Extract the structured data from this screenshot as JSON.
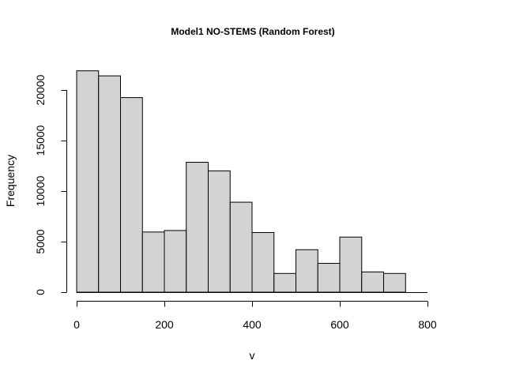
{
  "chart_data": {
    "type": "bar",
    "title": "Model1 NO-STEMS (Random Forest)",
    "xlabel": "v",
    "ylabel": "Frequency",
    "xlim": [
      0,
      800
    ],
    "ylim": [
      0,
      20000
    ],
    "x_ticks": [
      0,
      200,
      400,
      600,
      800
    ],
    "y_ticks": [
      0,
      5000,
      10000,
      15000,
      20000
    ],
    "bin_width": 50,
    "bins": [
      {
        "start": 0,
        "end": 50,
        "count": 21900
      },
      {
        "start": 50,
        "end": 100,
        "count": 21400
      },
      {
        "start": 100,
        "end": 150,
        "count": 19250
      },
      {
        "start": 150,
        "end": 200,
        "count": 5950
      },
      {
        "start": 200,
        "end": 250,
        "count": 6100
      },
      {
        "start": 250,
        "end": 300,
        "count": 12850
      },
      {
        "start": 300,
        "end": 350,
        "count": 12000
      },
      {
        "start": 350,
        "end": 400,
        "count": 8900
      },
      {
        "start": 400,
        "end": 450,
        "count": 5900
      },
      {
        "start": 450,
        "end": 500,
        "count": 1850
      },
      {
        "start": 500,
        "end": 550,
        "count": 4200
      },
      {
        "start": 550,
        "end": 600,
        "count": 2850
      },
      {
        "start": 600,
        "end": 650,
        "count": 5450
      },
      {
        "start": 650,
        "end": 700,
        "count": 2000
      },
      {
        "start": 700,
        "end": 750,
        "count": 1850
      },
      {
        "start": 750,
        "end": 800,
        "count": 0
      }
    ],
    "colors": {
      "bar_fill": "#d3d3d3",
      "bar_stroke": "#000000"
    },
    "grid": false,
    "legend": "none"
  }
}
